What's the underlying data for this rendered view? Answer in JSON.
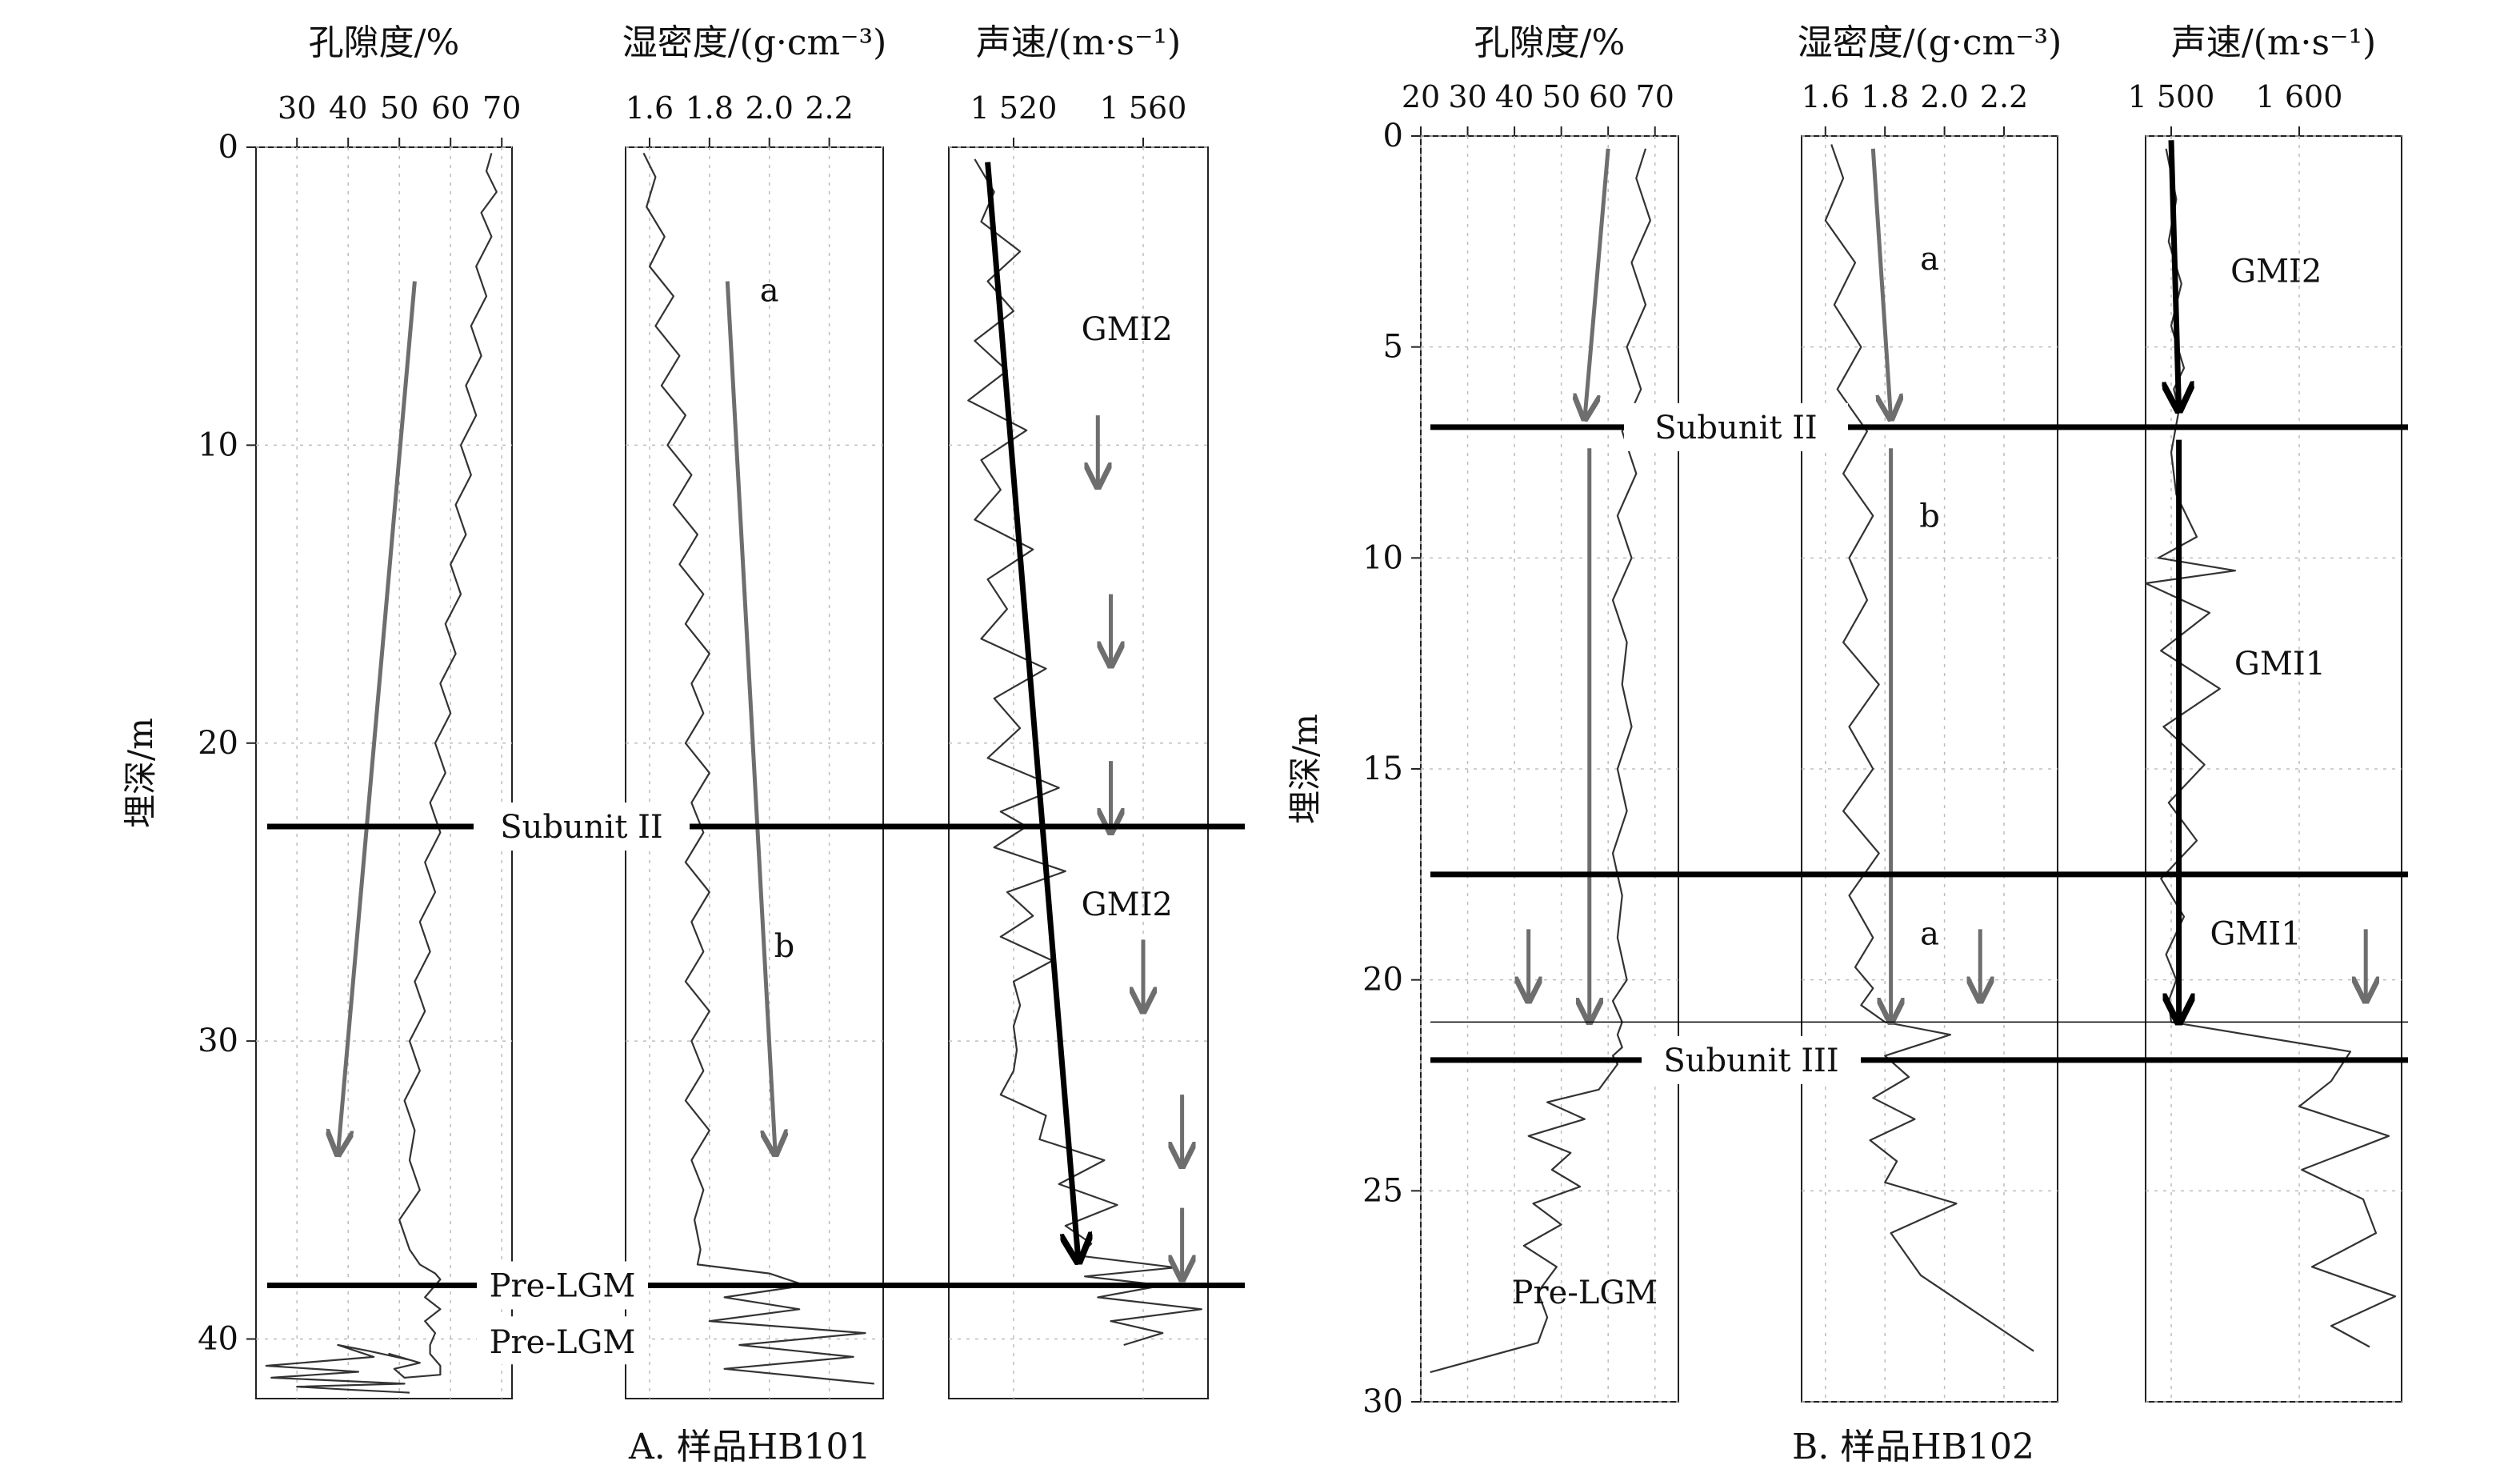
{
  "figure": {
    "caption_a": "A. 样品HB101",
    "caption_b": "B. 样品HB102",
    "depth_label": "埋深/m"
  },
  "chart_data": [
    {
      "type": "line",
      "id": "A-porosity",
      "panel": "A",
      "title": "孔隙度/%",
      "xlabel": "孔隙度/%",
      "ylabel": "埋深/m",
      "xlim": [
        22,
        72
      ],
      "ylim": [
        0,
        42
      ],
      "y_inverted": true,
      "xticks": [
        30,
        40,
        50,
        60,
        70
      ],
      "xtick_labels": [
        "30",
        "40",
        "50",
        "60",
        "70"
      ],
      "yticks": [
        0,
        10,
        20,
        30,
        40
      ],
      "ytick_labels": [
        "0",
        "10",
        "20",
        "30",
        "40"
      ],
      "grid": true,
      "series": [
        {
          "x": [
            68,
            67,
            69,
            66,
            68,
            65,
            67,
            64,
            66,
            63,
            65,
            62,
            64,
            61,
            63,
            60,
            62,
            59,
            61,
            58,
            60,
            57,
            59,
            56,
            58,
            55,
            57,
            54,
            56,
            53,
            55,
            52,
            54,
            51,
            53,
            52,
            54,
            50,
            52,
            54,
            57,
            58,
            55,
            58,
            55,
            57,
            56,
            56,
            58,
            58,
            51,
            49,
            54,
            48,
            52,
            44,
            38,
            45,
            24,
            42,
            25,
            51,
            30,
            40,
            52
          ],
          "y": [
            0.2,
            0.8,
            1.5,
            2.2,
            3,
            4,
            5,
            6,
            7,
            8,
            9,
            10,
            11,
            12,
            13,
            14,
            15,
            16,
            17,
            18,
            19,
            20,
            21,
            22,
            23,
            24,
            25,
            26,
            27,
            28,
            29,
            30,
            31,
            32,
            33,
            34,
            35,
            36,
            37,
            37.5,
            37.8,
            38.0,
            38.6,
            39.0,
            39.4,
            39.8,
            40.2,
            40.5,
            40.9,
            41.2,
            41.3,
            41.0,
            40.8,
            40.5,
            40.7,
            40.4,
            40.2,
            40.6,
            40.9,
            41.1,
            41.3,
            41.5,
            41.6,
            41.7,
            41.8
          ]
        }
      ],
      "arrows": [
        {
          "x1": 53,
          "y1": 4.5,
          "x2": 38,
          "y2": 33.8,
          "color": "#6e6e6e"
        }
      ],
      "hlines": [
        {
          "y": 22.8,
          "label": "Subunit II"
        },
        {
          "y": 38.2,
          "label": "Pre-LGM"
        }
      ],
      "annotations": []
    },
    {
      "type": "line",
      "id": "A-density",
      "panel": "A",
      "title": "湿密度/(g·cm⁻³)",
      "xlabel": "湿密度/(g·cm⁻³)",
      "xlim": [
        1.52,
        2.38
      ],
      "ylim": [
        0,
        42
      ],
      "y_inverted": true,
      "xticks": [
        1.6,
        1.8,
        2.0,
        2.2
      ],
      "xtick_labels": [
        "1.6",
        "1.8",
        "2.0",
        "2.2"
      ],
      "grid": true,
      "series": [
        {
          "x": [
            1.58,
            1.62,
            1.59,
            1.65,
            1.6,
            1.68,
            1.62,
            1.7,
            1.64,
            1.72,
            1.66,
            1.74,
            1.68,
            1.76,
            1.7,
            1.78,
            1.72,
            1.8,
            1.74,
            1.78,
            1.72,
            1.8,
            1.74,
            1.78,
            1.72,
            1.8,
            1.74,
            1.78,
            1.72,
            1.8,
            1.74,
            1.78,
            1.72,
            1.8,
            1.74,
            1.78,
            1.75,
            1.77,
            1.76,
            2.0,
            2.12,
            1.85,
            2.1,
            1.8,
            2.32,
            1.9,
            2.28,
            1.85,
            2.35
          ],
          "y": [
            0.2,
            1,
            2,
            3,
            4,
            5,
            6,
            7,
            8,
            9,
            10,
            11,
            12,
            13,
            14,
            15,
            16,
            17,
            18,
            19,
            20,
            21,
            22,
            23,
            24,
            25,
            26,
            27,
            28,
            29,
            30,
            31,
            32,
            33,
            34,
            35,
            36,
            37,
            37.5,
            37.8,
            38.2,
            38.6,
            39.0,
            39.4,
            39.8,
            40.2,
            40.6,
            41.0,
            41.5
          ]
        }
      ],
      "arrows": [
        {
          "x1": 1.86,
          "y1": 4.5,
          "x2": 2.02,
          "y2": 33.8,
          "color": "#6e6e6e"
        }
      ],
      "hlines": [
        {
          "y": 22.8
        },
        {
          "y": 38.2
        }
      ],
      "annotations": [
        {
          "x": 2.0,
          "y": 4.8,
          "text": "a"
        },
        {
          "x": 2.05,
          "y": 26.8,
          "text": "b"
        }
      ]
    },
    {
      "type": "line",
      "id": "A-velocity",
      "panel": "A",
      "title": "声速/(m·s⁻¹)",
      "xlabel": "声速/(m·s⁻¹)",
      "xlim": [
        1500,
        1580
      ],
      "ylim": [
        0,
        42
      ],
      "y_inverted": true,
      "xticks": [
        1520,
        1560
      ],
      "xtick_labels": [
        "1 520",
        "1 560"
      ],
      "grid": true,
      "series": [
        {
          "x": [
            1508,
            1514,
            1510,
            1522,
            1512,
            1520,
            1508,
            1518,
            1506,
            1524,
            1510,
            1516,
            1508,
            1526,
            1512,
            1518,
            1510,
            1530,
            1514,
            1522,
            1512,
            1534,
            1516,
            1524,
            1514,
            1536,
            1518,
            1526,
            1516,
            1532,
            1520,
            1522,
            1520,
            1521,
            1520,
            1516,
            1530,
            1528,
            1548,
            1534,
            1552,
            1536,
            1544,
            1540,
            1570,
            1542,
            1566,
            1546,
            1578,
            1550,
            1566,
            1554
          ],
          "y": [
            0.4,
            1.5,
            2.5,
            3.5,
            4.5,
            5.5,
            6.5,
            7.5,
            8.5,
            9.5,
            10.5,
            11.5,
            12.5,
            13.5,
            14.5,
            15.5,
            16.5,
            17.5,
            18.5,
            19.5,
            20.5,
            21.5,
            22.3,
            22.8,
            23.5,
            24.3,
            25.0,
            25.8,
            26.5,
            27.3,
            28.0,
            28.8,
            29.5,
            30.3,
            31.0,
            31.8,
            32.5,
            33.3,
            34.0,
            34.8,
            35.5,
            36.2,
            36.8,
            37.2,
            37.6,
            37.9,
            38.2,
            38.6,
            39.0,
            39.4,
            39.8,
            40.2
          ]
        }
      ],
      "arrows": [
        {
          "x1": 1512,
          "y1": 0.5,
          "x2": 1540,
          "y2": 37.4,
          "color": "#000000",
          "heavy": true
        },
        {
          "x1": 1546,
          "y1": 9,
          "x2": 1546,
          "y2": 11.4,
          "color": "#6e6e6e"
        },
        {
          "x1": 1550,
          "y1": 15,
          "x2": 1550,
          "y2": 17.4,
          "color": "#6e6e6e"
        },
        {
          "x1": 1550,
          "y1": 20.6,
          "x2": 1550,
          "y2": 23,
          "color": "#6e6e6e"
        },
        {
          "x1": 1560,
          "y1": 26.6,
          "x2": 1560,
          "y2": 29,
          "color": "#6e6e6e"
        },
        {
          "x1": 1572,
          "y1": 31.8,
          "x2": 1572,
          "y2": 34.2,
          "color": "#6e6e6e"
        },
        {
          "x1": 1572,
          "y1": 35.6,
          "x2": 1572,
          "y2": 38,
          "color": "#6e6e6e"
        }
      ],
      "hlines": [
        {
          "y": 22.8
        },
        {
          "y": 38.2
        }
      ],
      "annotations": [
        {
          "x": 1555,
          "y": 6.1,
          "text": "GMI2"
        },
        {
          "x": 1555,
          "y": 25.4,
          "text": "GMI2"
        }
      ]
    },
    {
      "type": "line",
      "id": "B-porosity",
      "panel": "B",
      "title": "孔隙度/%",
      "xlabel": "孔隙度/%",
      "ylabel": "埋深/m",
      "xlim": [
        20,
        75
      ],
      "ylim": [
        0,
        30
      ],
      "y_inverted": true,
      "xticks": [
        20,
        30,
        40,
        50,
        60,
        70
      ],
      "xtick_labels": [
        "20",
        "30",
        "40",
        "50",
        "60",
        "70"
      ],
      "yticks": [
        0,
        5,
        10,
        15,
        20,
        25,
        30
      ],
      "ytick_labels": [
        "0",
        "5",
        "10",
        "15",
        "20",
        "25",
        "30"
      ],
      "grid": true,
      "series": [
        {
          "x": [
            68,
            66,
            69,
            65,
            68,
            64,
            67,
            63,
            66,
            62,
            65,
            61,
            64,
            63,
            65,
            62,
            64,
            61,
            63,
            62,
            64,
            61,
            63,
            62,
            63,
            61,
            62,
            60,
            58,
            47,
            55,
            43,
            52,
            48,
            54,
            44,
            50,
            42,
            49,
            45,
            47,
            45,
            22
          ],
          "y": [
            0.3,
            1,
            2,
            3,
            4,
            5,
            6,
            7,
            8,
            9,
            10,
            11,
            12,
            13,
            14,
            15,
            16,
            17,
            18,
            19,
            20,
            20.5,
            21,
            21.3,
            21.6,
            21.8,
            22,
            22.3,
            22.6,
            22.9,
            23.3,
            23.7,
            24.1,
            24.5,
            24.9,
            25.3,
            25.8,
            26.3,
            26.8,
            27.4,
            28.0,
            28.6,
            29.3
          ]
        }
      ],
      "arrows": [
        {
          "x1": 60,
          "y1": 0.3,
          "x2": 55,
          "y2": 6.7,
          "color": "#6e6e6e"
        },
        {
          "x1": 56,
          "y1": 7.4,
          "x2": 56,
          "y2": 21.0,
          "color": "#6e6e6e"
        },
        {
          "x1": 43,
          "y1": 18.8,
          "x2": 43,
          "y2": 20.5,
          "color": "#6e6e6e"
        }
      ],
      "hlines": [
        {
          "y": 6.9,
          "label": "Subunit II"
        },
        {
          "y": 17.5
        },
        {
          "y": 21.0,
          "thin": true
        },
        {
          "y": 21.9,
          "label": "Subunit III"
        }
      ],
      "annotations": [
        {
          "x": 55,
          "y": 27.4,
          "text": "Pre-LGM"
        }
      ]
    },
    {
      "type": "line",
      "id": "B-density",
      "panel": "B",
      "title": "湿密度/(g·cm⁻³)",
      "xlabel": "湿密度/(g·cm⁻³)",
      "xlim": [
        1.52,
        2.38
      ],
      "ylim": [
        0,
        30
      ],
      "y_inverted": true,
      "xticks": [
        1.6,
        1.8,
        2.0,
        2.2
      ],
      "xtick_labels": [
        "1.6",
        "1.8",
        "2.0",
        "2.2"
      ],
      "grid": true,
      "series": [
        {
          "x": [
            1.62,
            1.66,
            1.6,
            1.7,
            1.63,
            1.72,
            1.64,
            1.74,
            1.66,
            1.76,
            1.68,
            1.74,
            1.66,
            1.78,
            1.68,
            1.76,
            1.66,
            1.78,
            1.68,
            1.76,
            1.7,
            1.76,
            1.72,
            1.8,
            2.02,
            1.8,
            1.88,
            1.76,
            1.9,
            1.75,
            1.84,
            1.8,
            2.04,
            1.82,
            1.92,
            2.3
          ],
          "y": [
            0.2,
            1,
            2,
            3,
            4,
            5,
            6,
            7,
            8,
            9,
            10,
            11,
            12,
            13,
            14,
            15,
            16,
            17,
            18,
            19,
            19.7,
            20.2,
            20.6,
            21.0,
            21.3,
            21.8,
            22.3,
            22.8,
            23.3,
            23.8,
            24.3,
            24.8,
            25.3,
            26.0,
            27.0,
            28.8
          ]
        }
      ],
      "arrows": [
        {
          "x1": 1.76,
          "y1": 0.3,
          "x2": 1.82,
          "y2": 6.7,
          "color": "#6e6e6e"
        },
        {
          "x1": 1.82,
          "y1": 7.4,
          "x2": 1.82,
          "y2": 21.0,
          "color": "#6e6e6e"
        },
        {
          "x1": 2.12,
          "y1": 18.8,
          "x2": 2.12,
          "y2": 20.5,
          "color": "#6e6e6e"
        }
      ],
      "hlines": [
        {
          "y": 6.9
        },
        {
          "y": 17.5
        },
        {
          "y": 21.0,
          "thin": true
        },
        {
          "y": 21.9
        }
      ],
      "annotations": [
        {
          "x": 1.95,
          "y": 2.9,
          "text": "a"
        },
        {
          "x": 1.95,
          "y": 9.0,
          "text": "b"
        },
        {
          "x": 1.95,
          "y": 18.9,
          "text": "a"
        }
      ]
    },
    {
      "type": "line",
      "id": "B-velocity",
      "panel": "B",
      "title": "声速/(m·s⁻¹)",
      "xlabel": "声速/(m·s⁻¹)",
      "xlim": [
        1480,
        1680
      ],
      "ylim": [
        0,
        30
      ],
      "y_inverted": true,
      "xticks": [
        1500,
        1600
      ],
      "xtick_labels": [
        "1 500",
        "1 600"
      ],
      "grid": true,
      "series": [
        {
          "x": [
            1496,
            1504,
            1498,
            1508,
            1500,
            1510,
            1502,
            1506,
            1500,
            1504,
            1520,
            1490,
            1550,
            1480,
            1530,
            1492,
            1538,
            1494,
            1526,
            1498,
            1520,
            1492,
            1510,
            1496,
            1504,
            1498,
            1500,
            1640,
            1625,
            1600,
            1670,
            1602,
            1650,
            1660,
            1610,
            1675,
            1625,
            1655
          ],
          "y": [
            0.3,
            1.5,
            2.5,
            3.5,
            4.5,
            5.5,
            6,
            6.5,
            7.5,
            8.5,
            9.5,
            10,
            10.3,
            10.6,
            11.3,
            12.2,
            13.1,
            14.0,
            14.9,
            15.8,
            16.7,
            17.6,
            18.5,
            19.4,
            20,
            20.5,
            21.0,
            21.7,
            22.4,
            23.0,
            23.7,
            24.5,
            25.2,
            26.0,
            26.8,
            27.5,
            28.2,
            28.7
          ]
        }
      ],
      "arrows": [
        {
          "x1": 1500,
          "y1": 0.1,
          "x2": 1506,
          "y2": 6.5,
          "color": "#000000",
          "heavy": true
        },
        {
          "x1": 1506,
          "y1": 7.2,
          "x2": 1506,
          "y2": 21.0,
          "color": "#000000",
          "heavy": true
        },
        {
          "x1": 1652,
          "y1": 18.8,
          "x2": 1652,
          "y2": 20.5,
          "color": "#6e6e6e"
        }
      ],
      "hlines": [
        {
          "y": 6.9
        },
        {
          "y": 17.5
        },
        {
          "y": 21.0,
          "thin": true
        },
        {
          "y": 21.9
        }
      ],
      "annotations": [
        {
          "x": 1582,
          "y": 3.2,
          "text": "GMI2"
        },
        {
          "x": 1585,
          "y": 12.5,
          "text": "GMI1"
        },
        {
          "x": 1566,
          "y": 18.9,
          "text": "GMI1"
        }
      ]
    }
  ]
}
